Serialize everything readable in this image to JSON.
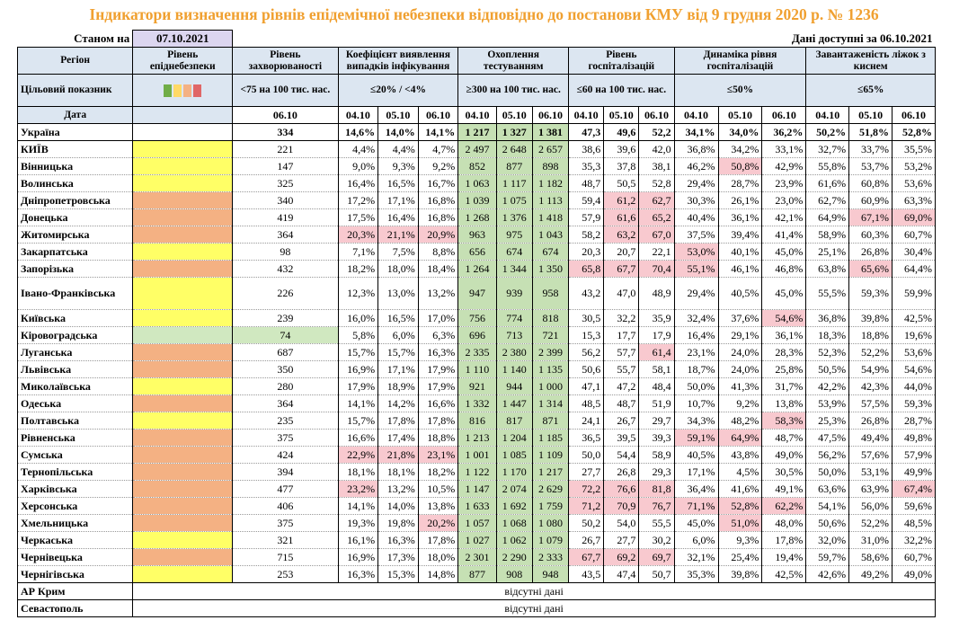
{
  "title": "Індикатори визначення рівнів епідемічної небезпеки відповідно до постанови КМУ від 9 грудня 2020 р. № 1236",
  "as_of_label": "Станом на",
  "as_of_date": "07.10.2021",
  "data_available_label": "Дані доступні за",
  "data_available_date": "06.10.2021",
  "headers": {
    "region": "Регіон",
    "danger_level": "Рівень епіднебезпеки",
    "incidence": "Рівень захворюваності",
    "detection": "Коефіцієнт виявлення випадків інфікування",
    "testing": "Охоплення тестуванням",
    "hosp": "Рівень госпіталізацій",
    "hosp_dyn": "Динаміка рівня госпіталізацій",
    "beds": "Завантаженість ліжок з киснем"
  },
  "targets": {
    "label": "Цільовий показник",
    "incidence": "<75 на 100 тис. нас.",
    "detection": "≤20% / <4%",
    "testing": "≥300 на 100 тис. нас.",
    "hosp": "≤60 на 100 тис. нас.",
    "hosp_dyn": "≤50%",
    "beds": "≤65%"
  },
  "level_colors": [
    "#70ad47",
    "#ffd966",
    "#f4b183",
    "#e06666"
  ],
  "dates_label": "Дата",
  "dates": {
    "incidence": "06.10",
    "three": [
      "04.10",
      "05.10",
      "06.10"
    ]
  },
  "rows": [
    {
      "region": "Україна",
      "level": "",
      "inc": "334",
      "det": [
        "14,6%",
        "14,0%",
        "14,1%"
      ],
      "test": [
        "1 217",
        "1 327",
        "1 381"
      ],
      "hosp": [
        "47,3",
        "49,6",
        "52,2"
      ],
      "dyn": [
        "34,1%",
        "34,0%",
        "36,2%"
      ],
      "beds": [
        "50,2%",
        "51,8%",
        "52,8%"
      ],
      "bold": true
    },
    {
      "region": "КИЇВ",
      "level": "y",
      "inc": "221",
      "det": [
        "4,4%",
        "4,4%",
        "4,7%"
      ],
      "test": [
        "2 497",
        "2 648",
        "2 657"
      ],
      "hosp": [
        "38,6",
        "39,6",
        "42,0"
      ],
      "dyn": [
        "36,8%",
        "34,2%",
        "33,1%"
      ],
      "beds": [
        "32,7%",
        "33,7%",
        "35,5%"
      ]
    },
    {
      "region": "Вінницька",
      "level": "y",
      "inc": "147",
      "det": [
        "9,0%",
        "9,3%",
        "9,2%"
      ],
      "test": [
        "852",
        "877",
        "898"
      ],
      "hosp": [
        "35,3",
        "37,8",
        "38,1"
      ],
      "dyn": [
        "46,2%",
        "50,8%",
        "42,9%"
      ],
      "beds": [
        "55,8%",
        "53,7%",
        "53,2%"
      ],
      "pink": {
        "dyn": [
          1
        ]
      }
    },
    {
      "region": "Волинська",
      "level": "y",
      "inc": "325",
      "det": [
        "16,4%",
        "16,5%",
        "16,7%"
      ],
      "test": [
        "1 063",
        "1 117",
        "1 182"
      ],
      "hosp": [
        "48,7",
        "50,5",
        "52,8"
      ],
      "dyn": [
        "29,4%",
        "28,7%",
        "23,9%"
      ],
      "beds": [
        "61,6%",
        "60,8%",
        "53,6%"
      ]
    },
    {
      "region": "Дніпропетровська",
      "level": "o",
      "inc": "340",
      "det": [
        "17,2%",
        "17,1%",
        "16,8%"
      ],
      "test": [
        "1 039",
        "1 075",
        "1 113"
      ],
      "hosp": [
        "59,4",
        "61,2",
        "62,7"
      ],
      "dyn": [
        "30,3%",
        "26,1%",
        "23,0%"
      ],
      "beds": [
        "62,7%",
        "60,9%",
        "63,3%"
      ],
      "pink": {
        "hosp": [
          1,
          2
        ]
      }
    },
    {
      "region": "Донецька",
      "level": "o",
      "inc": "419",
      "det": [
        "17,5%",
        "16,4%",
        "16,8%"
      ],
      "test": [
        "1 268",
        "1 376",
        "1 418"
      ],
      "hosp": [
        "57,9",
        "61,6",
        "65,2"
      ],
      "dyn": [
        "40,4%",
        "36,1%",
        "42,1%"
      ],
      "beds": [
        "64,9%",
        "67,1%",
        "69,0%"
      ],
      "pink": {
        "hosp": [
          1,
          2
        ],
        "beds": [
          1,
          2
        ]
      }
    },
    {
      "region": "Житомирська",
      "level": "o",
      "inc": "364",
      "det": [
        "20,3%",
        "21,1%",
        "20,9%"
      ],
      "test": [
        "963",
        "975",
        "1 043"
      ],
      "hosp": [
        "58,2",
        "63,2",
        "67,0"
      ],
      "dyn": [
        "37,5%",
        "39,4%",
        "41,4%"
      ],
      "beds": [
        "58,9%",
        "60,3%",
        "60,7%"
      ],
      "pink": {
        "det": [
          0,
          1,
          2
        ],
        "hosp": [
          1,
          2
        ]
      }
    },
    {
      "region": "Закарпатська",
      "level": "y",
      "inc": "98",
      "det": [
        "7,1%",
        "7,5%",
        "8,8%"
      ],
      "test": [
        "656",
        "674",
        "674"
      ],
      "hosp": [
        "20,3",
        "20,7",
        "22,1"
      ],
      "dyn": [
        "53,0%",
        "40,1%",
        "45,0%"
      ],
      "beds": [
        "25,1%",
        "26,8%",
        "30,4%"
      ],
      "pink": {
        "dyn": [
          0
        ]
      }
    },
    {
      "region": "Запорізька",
      "level": "o",
      "inc": "432",
      "det": [
        "18,2%",
        "18,0%",
        "18,4%"
      ],
      "test": [
        "1 264",
        "1 344",
        "1 350"
      ],
      "hosp": [
        "65,8",
        "67,7",
        "70,4"
      ],
      "dyn": [
        "55,1%",
        "46,1%",
        "46,8%"
      ],
      "beds": [
        "63,8%",
        "65,6%",
        "64,4%"
      ],
      "pink": {
        "hosp": [
          0,
          1,
          2
        ],
        "dyn": [
          0
        ],
        "beds": [
          1
        ]
      }
    },
    {
      "region": "Івано-Франківська",
      "level": "y",
      "inc": "226",
      "det": [
        "12,3%",
        "13,0%",
        "13,2%"
      ],
      "test": [
        "947",
        "939",
        "958"
      ],
      "hosp": [
        "43,2",
        "47,0",
        "48,9"
      ],
      "dyn": [
        "29,4%",
        "40,5%",
        "45,0%"
      ],
      "beds": [
        "55,5%",
        "59,3%",
        "59,9%"
      ],
      "tall": true
    },
    {
      "region": "Київська",
      "level": "y",
      "inc": "239",
      "det": [
        "16,0%",
        "16,5%",
        "17,0%"
      ],
      "test": [
        "756",
        "774",
        "818"
      ],
      "hosp": [
        "30,5",
        "32,2",
        "35,9"
      ],
      "dyn": [
        "32,4%",
        "37,6%",
        "54,6%"
      ],
      "beds": [
        "36,8%",
        "39,8%",
        "42,5%"
      ],
      "pink": {
        "dyn": [
          2
        ]
      }
    },
    {
      "region": "Кіровоградська",
      "level": "g",
      "inc": "74",
      "det": [
        "5,8%",
        "6,0%",
        "6,3%"
      ],
      "test": [
        "696",
        "713",
        "721"
      ],
      "hosp": [
        "15,3",
        "17,7",
        "17,9"
      ],
      "dyn": [
        "16,4%",
        "29,1%",
        "36,1%"
      ],
      "beds": [
        "18,3%",
        "18,8%",
        "19,6%"
      ],
      "incgreen": true
    },
    {
      "region": "Луганська",
      "level": "o",
      "inc": "687",
      "det": [
        "15,7%",
        "15,7%",
        "16,3%"
      ],
      "test": [
        "2 335",
        "2 380",
        "2 399"
      ],
      "hosp": [
        "56,2",
        "57,7",
        "61,4"
      ],
      "dyn": [
        "23,1%",
        "24,0%",
        "28,3%"
      ],
      "beds": [
        "52,3%",
        "52,2%",
        "53,6%"
      ],
      "pink": {
        "hosp": [
          2
        ]
      }
    },
    {
      "region": "Львівська",
      "level": "o",
      "inc": "350",
      "det": [
        "16,9%",
        "17,1%",
        "17,9%"
      ],
      "test": [
        "1 110",
        "1 140",
        "1 135"
      ],
      "hosp": [
        "50,6",
        "55,7",
        "58,1"
      ],
      "dyn": [
        "18,7%",
        "24,0%",
        "25,8%"
      ],
      "beds": [
        "50,5%",
        "54,9%",
        "54,6%"
      ]
    },
    {
      "region": "Миколаївська",
      "level": "y",
      "inc": "280",
      "det": [
        "17,9%",
        "18,9%",
        "17,9%"
      ],
      "test": [
        "921",
        "944",
        "1 000"
      ],
      "hosp": [
        "47,1",
        "47,2",
        "48,4"
      ],
      "dyn": [
        "50,0%",
        "41,3%",
        "31,7%"
      ],
      "beds": [
        "42,2%",
        "42,3%",
        "44,0%"
      ]
    },
    {
      "region": "Одеська",
      "level": "o",
      "inc": "364",
      "det": [
        "14,1%",
        "14,2%",
        "16,6%"
      ],
      "test": [
        "1 332",
        "1 447",
        "1 314"
      ],
      "hosp": [
        "48,5",
        "48,7",
        "51,9"
      ],
      "dyn": [
        "10,7%",
        "9,2%",
        "13,8%"
      ],
      "beds": [
        "53,9%",
        "57,5%",
        "59,3%"
      ]
    },
    {
      "region": "Полтавська",
      "level": "y",
      "inc": "235",
      "det": [
        "15,7%",
        "17,8%",
        "17,8%"
      ],
      "test": [
        "816",
        "817",
        "871"
      ],
      "hosp": [
        "24,1",
        "26,7",
        "29,7"
      ],
      "dyn": [
        "34,3%",
        "48,2%",
        "58,3%"
      ],
      "beds": [
        "25,3%",
        "26,8%",
        "28,7%"
      ],
      "pink": {
        "dyn": [
          2
        ]
      }
    },
    {
      "region": "Рівненська",
      "level": "o",
      "inc": "375",
      "det": [
        "16,6%",
        "17,4%",
        "18,8%"
      ],
      "test": [
        "1 213",
        "1 204",
        "1 185"
      ],
      "hosp": [
        "36,5",
        "39,5",
        "39,3"
      ],
      "dyn": [
        "59,1%",
        "64,9%",
        "48,7%"
      ],
      "beds": [
        "47,5%",
        "49,4%",
        "49,8%"
      ],
      "pink": {
        "dyn": [
          0,
          1
        ]
      }
    },
    {
      "region": "Сумська",
      "level": "o",
      "inc": "424",
      "det": [
        "22,9%",
        "21,8%",
        "23,1%"
      ],
      "test": [
        "1 001",
        "1 085",
        "1 109"
      ],
      "hosp": [
        "50,0",
        "54,4",
        "58,9"
      ],
      "dyn": [
        "40,5%",
        "43,8%",
        "49,0%"
      ],
      "beds": [
        "56,2%",
        "57,6%",
        "57,9%"
      ],
      "pink": {
        "det": [
          0,
          1,
          2
        ]
      }
    },
    {
      "region": "Тернопільська",
      "level": "o",
      "inc": "394",
      "det": [
        "18,1%",
        "18,1%",
        "18,2%"
      ],
      "test": [
        "1 122",
        "1 170",
        "1 217"
      ],
      "hosp": [
        "27,7",
        "26,8",
        "29,3"
      ],
      "dyn": [
        "17,1%",
        "4,5%",
        "30,5%"
      ],
      "beds": [
        "50,0%",
        "53,1%",
        "49,9%"
      ]
    },
    {
      "region": "Харківська",
      "level": "o",
      "inc": "477",
      "det": [
        "23,2%",
        "13,2%",
        "10,5%"
      ],
      "test": [
        "1 147",
        "2 074",
        "2 629"
      ],
      "hosp": [
        "72,2",
        "76,6",
        "81,8"
      ],
      "dyn": [
        "36,4%",
        "41,6%",
        "49,1%"
      ],
      "beds": [
        "63,6%",
        "63,9%",
        "67,4%"
      ],
      "pink": {
        "det": [
          0
        ],
        "hosp": [
          0,
          1,
          2
        ],
        "beds": [
          2
        ]
      }
    },
    {
      "region": "Херсонська",
      "level": "o",
      "inc": "406",
      "det": [
        "14,1%",
        "14,0%",
        "13,8%"
      ],
      "test": [
        "1 633",
        "1 692",
        "1 759"
      ],
      "hosp": [
        "71,2",
        "70,9",
        "76,7"
      ],
      "dyn": [
        "71,1%",
        "52,8%",
        "62,2%"
      ],
      "beds": [
        "54,1%",
        "56,0%",
        "59,6%"
      ],
      "pink": {
        "hosp": [
          0,
          1,
          2
        ],
        "dyn": [
          0,
          1,
          2
        ]
      }
    },
    {
      "region": "Хмельницька",
      "level": "o",
      "inc": "375",
      "det": [
        "19,3%",
        "19,8%",
        "20,2%"
      ],
      "test": [
        "1 057",
        "1 068",
        "1 080"
      ],
      "hosp": [
        "50,2",
        "54,0",
        "55,5"
      ],
      "dyn": [
        "45,0%",
        "51,0%",
        "48,0%"
      ],
      "beds": [
        "50,6%",
        "52,2%",
        "48,5%"
      ],
      "pink": {
        "det": [
          2
        ],
        "dyn": [
          1
        ]
      }
    },
    {
      "region": "Черкаська",
      "level": "y",
      "inc": "321",
      "det": [
        "16,1%",
        "16,3%",
        "17,8%"
      ],
      "test": [
        "1 027",
        "1 062",
        "1 079"
      ],
      "hosp": [
        "26,7",
        "27,7",
        "30,2"
      ],
      "dyn": [
        "6,0%",
        "9,3%",
        "17,8%"
      ],
      "beds": [
        "32,0%",
        "31,0%",
        "32,2%"
      ]
    },
    {
      "region": "Чернівецька",
      "level": "o",
      "inc": "715",
      "det": [
        "16,9%",
        "17,3%",
        "18,0%"
      ],
      "test": [
        "2 301",
        "2 290",
        "2 333"
      ],
      "hosp": [
        "67,7",
        "69,2",
        "69,7"
      ],
      "dyn": [
        "32,1%",
        "25,4%",
        "19,4%"
      ],
      "beds": [
        "59,7%",
        "58,6%",
        "60,7%"
      ],
      "pink": {
        "hosp": [
          0,
          1,
          2
        ]
      }
    },
    {
      "region": "Чернігівська",
      "level": "y",
      "inc": "253",
      "det": [
        "16,3%",
        "15,3%",
        "14,8%"
      ],
      "test": [
        "877",
        "908",
        "948"
      ],
      "hosp": [
        "43,5",
        "47,4",
        "50,7"
      ],
      "dyn": [
        "35,3%",
        "39,8%",
        "42,5%"
      ],
      "beds": [
        "42,6%",
        "49,2%",
        "49,0%"
      ]
    }
  ],
  "missing_rows": [
    {
      "region": "АР Крим",
      "text": "відсутні дані"
    },
    {
      "region": "Севастополь",
      "text": "відсутні дані"
    }
  ],
  "chart_data": {
    "type": "table",
    "title": "Індикатори визначення рівнів епідемічної небезпеки відповідно до постанови КМУ від 9 грудня 2020 р. № 1236",
    "columns": [
      "Регіон",
      "Рівень епіднебезпеки",
      "Рівень захворюваності",
      "Коефіцієнт виявлення випадків інфікування",
      "Охоплення тестуванням",
      "Рівень госпіталізацій",
      "Динаміка рівня госпіталізацій",
      "Завантаженість ліжок з киснем"
    ]
  }
}
